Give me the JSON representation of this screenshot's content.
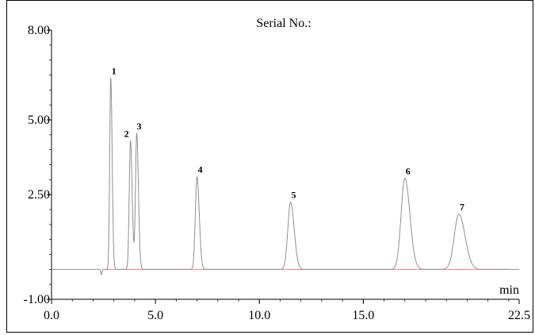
{
  "chart_data": {
    "type": "line",
    "title": "Serial No.:",
    "xlabel": "min",
    "ylabel": "",
    "xlim": [
      0,
      22.5
    ],
    "ylim": [
      -1.0,
      8.0
    ],
    "x_ticks": [
      {
        "value": 0.0,
        "label": "0.0"
      },
      {
        "value": 5.0,
        "label": "5.0"
      },
      {
        "value": 10.0,
        "label": "10.0"
      },
      {
        "value": 15.0,
        "label": "15.0"
      },
      {
        "value": 22.5,
        "label": "22.5"
      }
    ],
    "y_ticks": [
      {
        "value": 8.0,
        "label": "8.00"
      },
      {
        "value": 5.0,
        "label": "5.00"
      },
      {
        "value": 2.5,
        "label": "2.50"
      },
      {
        "value": -1.0,
        "label": "-1.00"
      }
    ],
    "grid": false,
    "baseline_value": 0.0,
    "trace_color": "#909090",
    "baseline_color": "#ff8080",
    "disturbance": {
      "x": 2.4,
      "depth": -0.18
    },
    "peaks": [
      {
        "label": "1",
        "rt": 2.85,
        "height": 6.4,
        "width": 0.05
      },
      {
        "label": "2",
        "rt": 3.8,
        "height": 4.3,
        "width": 0.06
      },
      {
        "label": "3",
        "rt": 4.1,
        "height": 4.55,
        "width": 0.06
      },
      {
        "label": "4",
        "rt": 7.0,
        "height": 3.1,
        "width": 0.08
      },
      {
        "label": "5",
        "rt": 11.5,
        "height": 2.25,
        "width": 0.13
      },
      {
        "label": "6",
        "rt": 17.0,
        "height": 3.05,
        "width": 0.18
      },
      {
        "label": "7",
        "rt": 19.6,
        "height": 1.85,
        "width": 0.22
      }
    ]
  }
}
